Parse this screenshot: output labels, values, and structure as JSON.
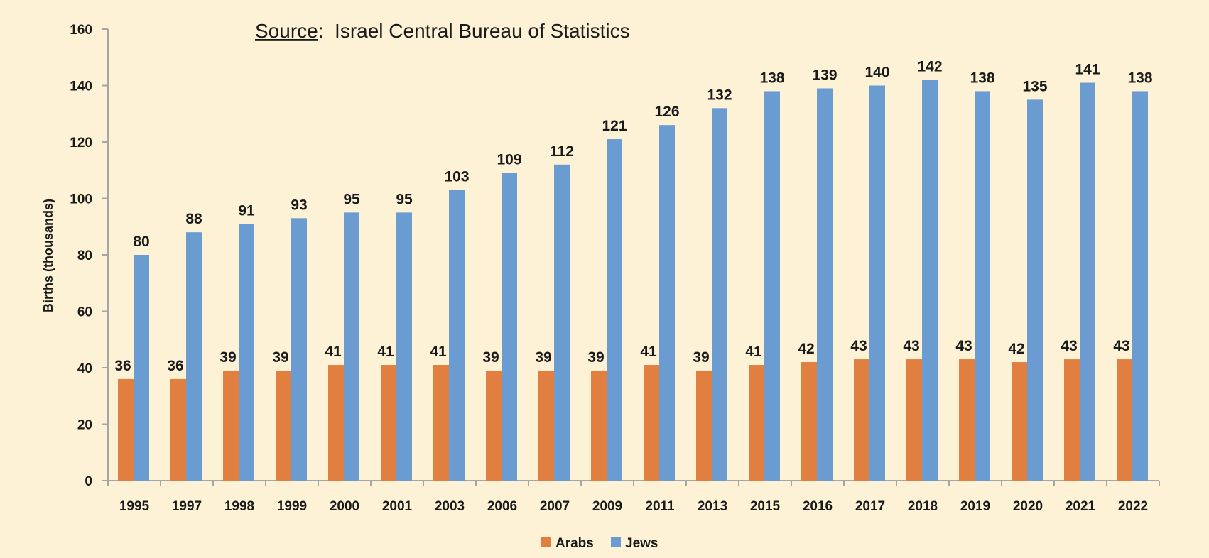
{
  "chart_data": {
    "type": "bar",
    "title": "",
    "annotation": {
      "source_label": "Source",
      "source_text": ":  Israel Central Bureau of Statistics"
    },
    "xlabel": "",
    "ylabel": "Births (thousands)",
    "ylim": [
      0,
      160
    ],
    "yticks": [
      0,
      20,
      40,
      60,
      80,
      100,
      120,
      140,
      160
    ],
    "grid": false,
    "legend_position": "bottom-center",
    "categories": [
      "1995",
      "1997",
      "1998",
      "1999",
      "2000",
      "2001",
      "2003",
      "2006",
      "2007",
      "2009",
      "2011",
      "2013",
      "2015",
      "2016",
      "2017",
      "2018",
      "2019",
      "2020",
      "2021",
      "2022"
    ],
    "series": [
      {
        "name": "Arabs",
        "color": "#E07F40",
        "values": [
          36,
          36,
          39,
          39,
          41,
          41,
          41,
          39,
          39,
          39,
          41,
          39,
          41,
          42,
          43,
          43,
          43,
          42,
          43,
          43
        ]
      },
      {
        "name": "Jews",
        "color": "#6A9BD1",
        "values": [
          80,
          88,
          91,
          93,
          95,
          95,
          103,
          109,
          112,
          121,
          126,
          132,
          138,
          139,
          140,
          142,
          138,
          135,
          141,
          138
        ]
      }
    ]
  }
}
